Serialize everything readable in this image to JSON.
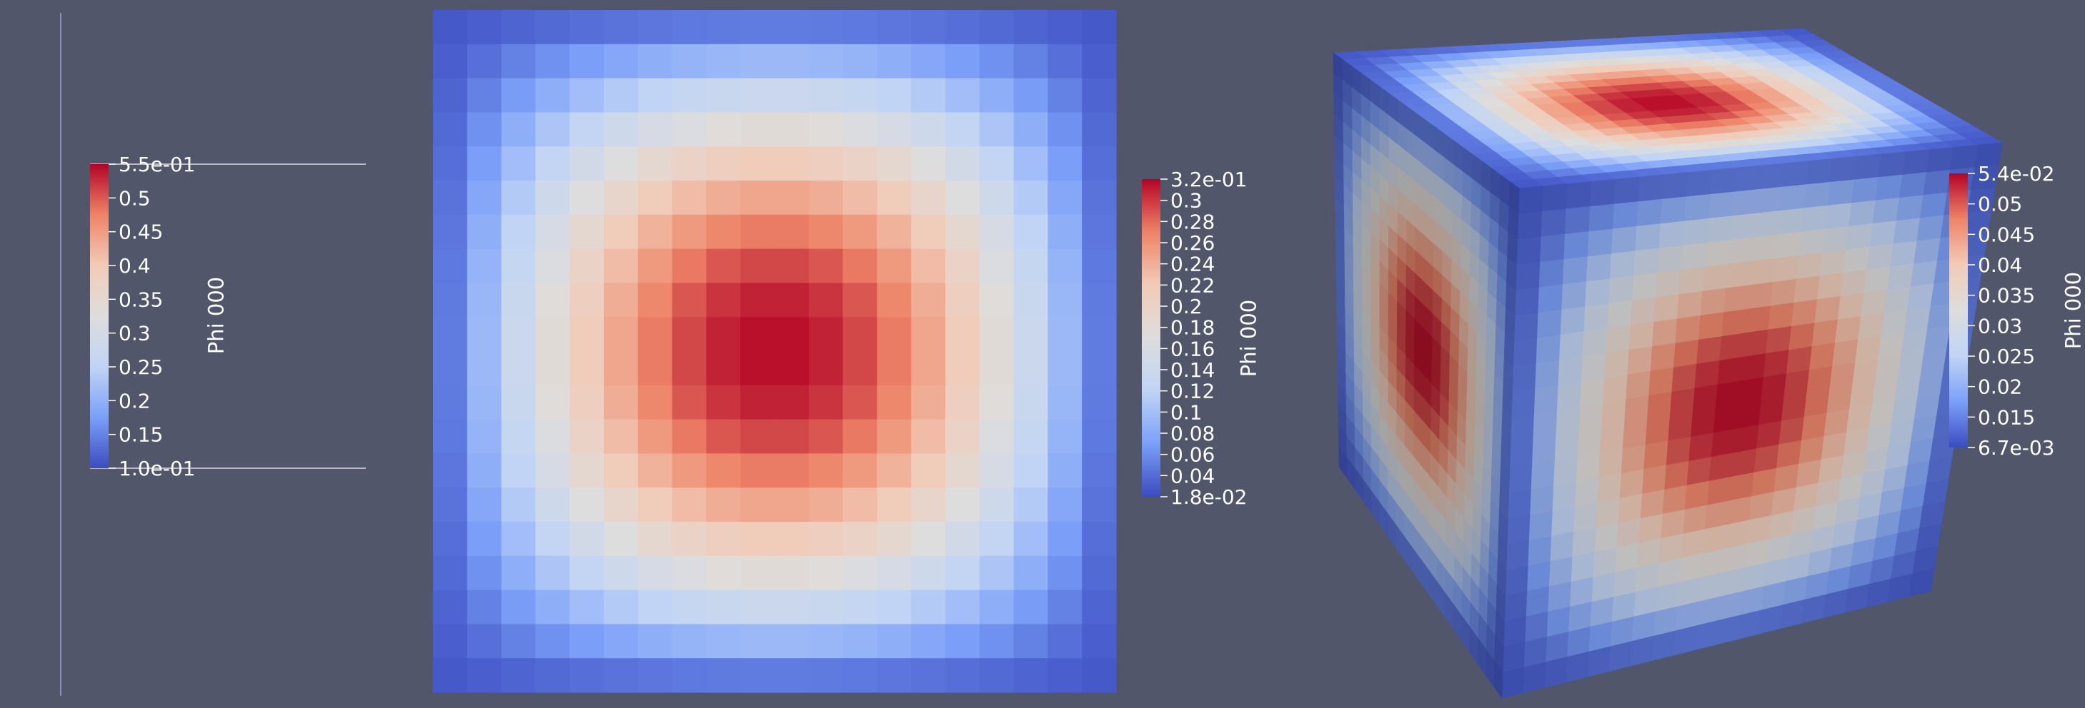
{
  "colormap": {
    "name": "Cool to Warm",
    "stops": [
      "#3b4cc0",
      "#7b9ff9",
      "#c0d4f5",
      "#dddddd",
      "#f2cbb7",
      "#ee8468",
      "#b40426"
    ]
  },
  "background_color": "#52566b",
  "panel1": {
    "view": "1D line",
    "legend": {
      "title": "Phi 000",
      "range": [
        0.1,
        0.55
      ],
      "labels": [
        "5.5e-01",
        "0.5",
        "0.45",
        "0.4",
        "0.35",
        "0.3",
        "0.25",
        "0.2",
        "0.15",
        "1.0e-01"
      ]
    }
  },
  "panel2": {
    "view": "2D slice",
    "grid": 20,
    "legend": {
      "title": "Phi 000",
      "range": [
        0.018,
        0.32
      ],
      "labels": [
        "3.2e-01",
        "0.3",
        "0.28",
        "0.26",
        "0.24",
        "0.22",
        "0.2",
        "0.18",
        "0.16",
        "0.14",
        "0.12",
        "0.1",
        "0.08",
        "0.06",
        "0.04",
        "1.8e-02"
      ]
    }
  },
  "panel3": {
    "view": "3D cube",
    "grid": 20,
    "legend": {
      "title": "Phi 000",
      "range": [
        0.0067,
        0.054
      ],
      "labels": [
        "5.4e-02",
        "0.05",
        "0.045",
        "0.04",
        "0.035",
        "0.03",
        "0.025",
        "0.02",
        "0.015",
        "6.7e-03"
      ]
    }
  }
}
